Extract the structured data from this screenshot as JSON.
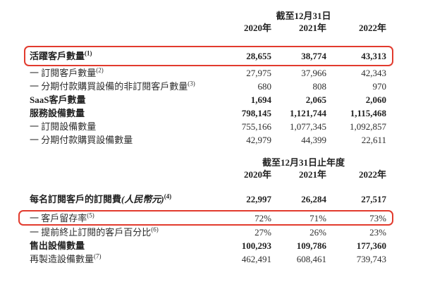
{
  "page": {
    "background_color": "#ffffff",
    "text_color": "#2d2d2d",
    "highlight_border_color": "#e23b2e"
  },
  "columns": [
    "2020年",
    "2021年",
    "2022年"
  ],
  "section1": {
    "period_header": "截至12月31日",
    "rows": [
      {
        "label": "活躍客戶數量",
        "sup": "(1)",
        "italic": "",
        "values": [
          "28,655",
          "38,774",
          "43,313"
        ],
        "bold": true,
        "highlighted": true
      },
      {
        "label": "一 訂閱客戶數量",
        "sup": "(2)",
        "italic": "",
        "values": [
          "27,975",
          "37,966",
          "42,343"
        ],
        "bold": false,
        "highlighted": false
      },
      {
        "label": "一 分期付款購買設備的非訂閱客戶數量",
        "sup": "(3)",
        "italic": "",
        "values": [
          "680",
          "808",
          "970"
        ],
        "bold": false,
        "highlighted": false
      },
      {
        "label": "SaaS客戶數量",
        "sup": "",
        "italic": "",
        "values": [
          "1,694",
          "2,065",
          "2,060"
        ],
        "bold": true,
        "highlighted": false
      },
      {
        "label": "服務設備數量",
        "sup": "",
        "italic": "",
        "values": [
          "798,145",
          "1,121,744",
          "1,115,468"
        ],
        "bold": true,
        "highlighted": false
      },
      {
        "label": "一 訂閱設備數量",
        "sup": "",
        "italic": "",
        "values": [
          "755,166",
          "1,077,345",
          "1,092,857"
        ],
        "bold": false,
        "highlighted": false
      },
      {
        "label": "一 分期付款購買設備數量",
        "sup": "",
        "italic": "",
        "values": [
          "42,979",
          "44,399",
          "22,611"
        ],
        "bold": false,
        "highlighted": false
      }
    ]
  },
  "section2": {
    "period_header": "截至12月31日止年度",
    "rows": [
      {
        "label": "每名訂閱客戶的訂閱費",
        "italic": "(人民幣元)",
        "sup": "(4)",
        "values": [
          "22,997",
          "26,284",
          "27,517"
        ],
        "bold": true,
        "highlighted": false
      },
      {
        "label": "一 客戶留存率",
        "italic": "",
        "sup": "(5)",
        "values": [
          "72%",
          "71%",
          "73%"
        ],
        "bold": false,
        "highlighted": true
      },
      {
        "label": "一 提前終止訂閱的客戶百分比",
        "italic": "",
        "sup": "(6)",
        "values": [
          "27%",
          "26%",
          "23%"
        ],
        "bold": false,
        "highlighted": false
      },
      {
        "label": "售出設備數量",
        "italic": "",
        "sup": "",
        "values": [
          "100,293",
          "109,786",
          "177,360"
        ],
        "bold": true,
        "highlighted": false
      },
      {
        "label": "再製造設備數量",
        "italic": "",
        "sup": "(7)",
        "values": [
          "462,491",
          "608,461",
          "739,743"
        ],
        "bold": false,
        "highlighted": false
      }
    ]
  }
}
